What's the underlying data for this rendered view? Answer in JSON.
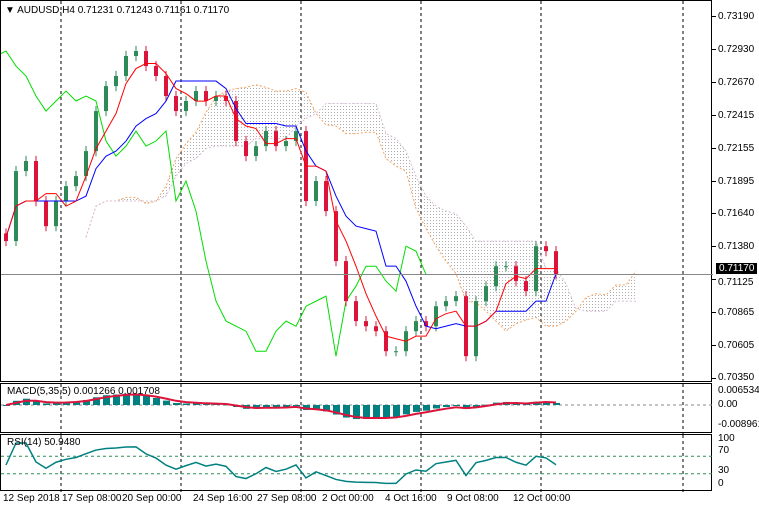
{
  "header": {
    "symbol": "AUDUSD,H4",
    "open": "0.71231",
    "high": "0.71243",
    "low": "0.71161",
    "close": "0.71170"
  },
  "price_axis": [
    "0.73190",
    "0.72930",
    "0.72670",
    "0.72415",
    "0.72155",
    "0.71895",
    "0.71640",
    "0.71380",
    "0.71125",
    "0.70865",
    "0.70605",
    "0.70350"
  ],
  "current_price": "0.71170",
  "macd": {
    "label": "MACD(5,35,5) 0.001266 0.001708",
    "axis": [
      "0.006534",
      "0.00",
      "-0.008961"
    ]
  },
  "rsi": {
    "label": "RSI(14) 50.9480",
    "axis": [
      "100",
      "70",
      "30",
      "0"
    ]
  },
  "time_axis": [
    "12 Sep 2018",
    "17 Sep 08:00",
    "20 Sep 00:00",
    "24 Sep 16:00",
    "27 Sep 08:00",
    "2 Oct 00:00",
    "4 Oct 16:00",
    "9 Oct 08:00",
    "12 Oct 00:00"
  ],
  "colors": {
    "bull": "#2e8b57",
    "bear": "#dc143c",
    "tenkan": "#ff0000",
    "kijun": "#0000ff",
    "chikou": "#00dd00",
    "macd_hist": "#008080",
    "macd_signal": "#dc143c",
    "rsi": "#008080"
  },
  "chart_data": {
    "type": "candlestick",
    "ylim": [
      0.7035,
      0.7319
    ],
    "closes": [
      0.71432,
      0.71981,
      0.7206,
      0.71746,
      0.71549,
      0.71746,
      0.71863,
      0.71942,
      0.72138,
      0.72452,
      0.72648,
      0.72727,
      0.72884,
      0.72923,
      0.72805,
      0.72727,
      0.7257,
      0.72452,
      0.72531,
      0.72609,
      0.72531,
      0.7257,
      0.72531,
      0.72217,
      0.72099,
      0.72177,
      0.72295,
      0.72177,
      0.72217,
      0.72295,
      0.71746,
      0.71903,
      0.71667,
      0.71275,
      0.70961,
      0.70804,
      0.70764,
      0.70725,
      0.70568,
      0.70568,
      0.70725,
      0.70804,
      0.70764,
      0.70921,
      0.70961,
      0.71,
      0.70529,
      0.70961,
      0.71078,
      0.71235,
      0.71235,
      0.71118,
      0.71039,
      0.71392,
      0.71353,
      0.7117
    ]
  }
}
